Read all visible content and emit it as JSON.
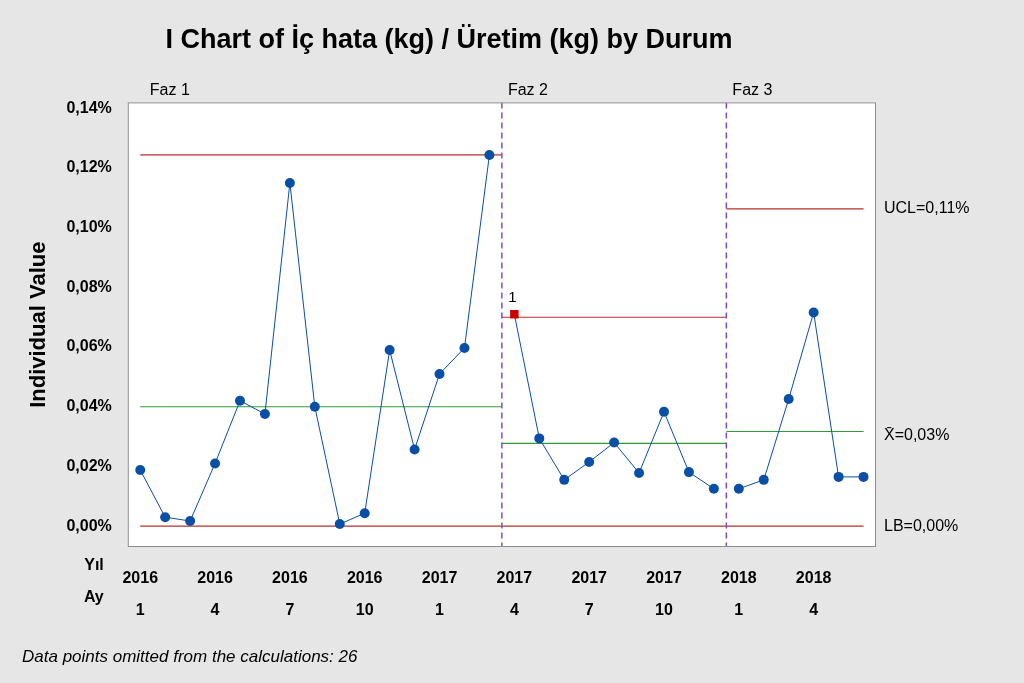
{
  "chart_data": {
    "type": "line",
    "title": "I Chart of İç hata (kg) / Üretim (kg) by Durum",
    "y_label": "Individual Value",
    "x_row_titles": [
      "Yıl",
      "Ay"
    ],
    "categories": [
      [
        "2016",
        "1"
      ],
      null,
      null,
      [
        "2016",
        "4"
      ],
      null,
      null,
      [
        "2016",
        "7"
      ],
      null,
      null,
      [
        "2016",
        "10"
      ],
      null,
      null,
      [
        "2017",
        "1"
      ],
      null,
      null,
      [
        "2017",
        "4"
      ],
      null,
      null,
      [
        "2017",
        "7"
      ],
      null,
      null,
      [
        "2017",
        "10"
      ],
      null,
      null,
      [
        "2018",
        "1"
      ],
      null,
      null,
      [
        "2018",
        "4"
      ],
      null,
      null
    ],
    "color": "#0a4fa6",
    "marker": "circle",
    "ylim": [
      -0.007,
      0.142
    ],
    "yticks": [
      {
        "value": 0,
        "label": "0,00%"
      },
      {
        "value": 0.02,
        "label": "0,02%"
      },
      {
        "value": 0.04,
        "label": "0,04%"
      },
      {
        "value": 0.06,
        "label": "0,06%"
      },
      {
        "value": 0.08,
        "label": "0,08%"
      },
      {
        "value": 0.1,
        "label": "0,10%"
      },
      {
        "value": 0.12,
        "label": "0,12%"
      },
      {
        "value": 0.14,
        "label": "0,14%"
      }
    ],
    "grid": false,
    "phases": [
      {
        "name": "Faz 1",
        "values": [
          0.0188,
          0.003,
          0.0017,
          0.021,
          0.042,
          0.0376,
          0.115,
          0.04,
          0.0007,
          0.0043,
          0.059,
          0.0257,
          0.051,
          0.0597,
          0.1244
        ],
        "ucl": 0.1244,
        "mean": 0.04,
        "lb": 0
      },
      {
        "name": "Faz 2",
        "values": [
          0.071,
          0.0294,
          0.0155,
          0.0215,
          0.028,
          0.0178,
          0.0383,
          0.0181,
          0.0125
        ],
        "ucl": 0.07,
        "mean": 0.0277,
        "lb": 0
      },
      {
        "name": "Faz 3",
        "values": [
          0.0125,
          0.0155,
          0.0426,
          0.0716,
          0.0165,
          0.0165
        ],
        "ucl": 0.1063,
        "mean": 0.0317,
        "lb": 0
      }
    ],
    "flagged_points": [
      {
        "index": 15,
        "label": "1",
        "color": "#cc0000"
      }
    ],
    "limit_labels": {
      "ucl": "UCL=0,11%",
      "mean": "X̄=0,03%",
      "lb": "LB=0,00%"
    },
    "footnote": "Data points omitted from the calculations: 26"
  }
}
